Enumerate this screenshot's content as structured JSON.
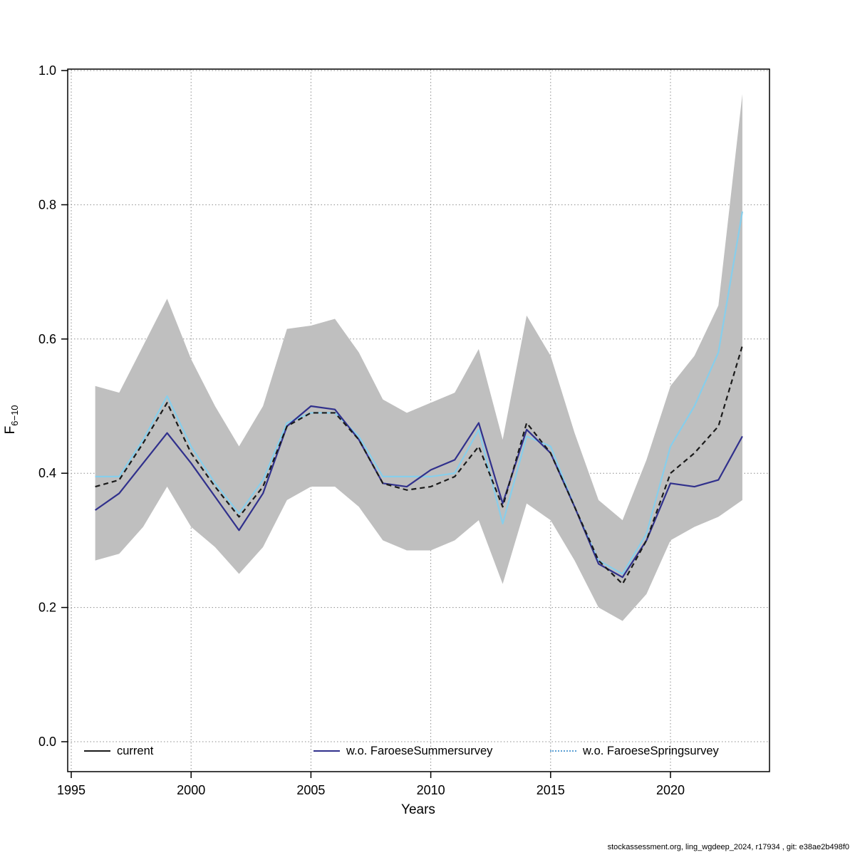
{
  "page": {
    "footer": "stockassessment.org, ling_wgdeep_2024, r17934 , git: e38ae2b498f0"
  },
  "chart_data": {
    "type": "line",
    "title": "",
    "xlabel": "Years",
    "ylabel_main": "F",
    "ylabel_sub": "6−10",
    "xlim": [
      1994.8,
      2024.2
    ],
    "ylim": [
      0,
      1.0
    ],
    "xticks": [
      1995,
      2000,
      2005,
      2010,
      2015,
      2020
    ],
    "yticks": [
      0.0,
      0.2,
      0.4,
      0.6,
      0.8,
      1.0
    ],
    "grid": true,
    "x": [
      1996,
      1997,
      1998,
      1999,
      2000,
      2001,
      2002,
      2003,
      2004,
      2005,
      2006,
      2007,
      2008,
      2009,
      2010,
      2011,
      2012,
      2013,
      2014,
      2015,
      2016,
      2017,
      2018,
      2019,
      2020,
      2021,
      2022,
      2023
    ],
    "band": {
      "name": "confidence-band",
      "color": "#bfbfbf",
      "lower": [
        0.27,
        0.28,
        0.32,
        0.38,
        0.32,
        0.29,
        0.25,
        0.29,
        0.36,
        0.38,
        0.38,
        0.35,
        0.3,
        0.285,
        0.285,
        0.3,
        0.33,
        0.235,
        0.355,
        0.33,
        0.27,
        0.2,
        0.18,
        0.22,
        0.3,
        0.32,
        0.335,
        0.36
      ],
      "upper": [
        0.53,
        0.52,
        0.59,
        0.66,
        0.57,
        0.5,
        0.44,
        0.5,
        0.615,
        0.62,
        0.63,
        0.58,
        0.51,
        0.49,
        0.505,
        0.52,
        0.585,
        0.45,
        0.635,
        0.575,
        0.46,
        0.36,
        0.33,
        0.42,
        0.53,
        0.575,
        0.65,
        0.965
      ]
    },
    "series": [
      {
        "name": "current",
        "color": "#1a1a1a",
        "style": "dashed",
        "values": [
          0.38,
          0.39,
          0.445,
          0.505,
          0.43,
          0.38,
          0.335,
          0.38,
          0.47,
          0.49,
          0.49,
          0.45,
          0.385,
          0.375,
          0.38,
          0.395,
          0.44,
          0.35,
          0.475,
          0.43,
          0.35,
          0.27,
          0.235,
          0.3,
          0.4,
          0.43,
          0.47,
          0.59
        ]
      },
      {
        "name": "w.o. FaroeseSummersurvey",
        "color": "#30308c",
        "style": "solid",
        "values": [
          0.345,
          0.37,
          0.415,
          0.46,
          0.415,
          0.365,
          0.315,
          0.37,
          0.47,
          0.5,
          0.495,
          0.45,
          0.385,
          0.38,
          0.405,
          0.42,
          0.475,
          0.355,
          0.465,
          0.43,
          0.35,
          0.265,
          0.245,
          0.3,
          0.385,
          0.38,
          0.39,
          0.455
        ]
      },
      {
        "name": "w.o. FaroeseSpringsurvey",
        "color": "#87ceeb",
        "style": "solid",
        "values": [
          0.395,
          0.395,
          0.45,
          0.515,
          0.44,
          0.385,
          0.34,
          0.39,
          0.475,
          0.49,
          0.49,
          0.455,
          0.395,
          0.395,
          0.395,
          0.4,
          0.465,
          0.325,
          0.455,
          0.44,
          0.35,
          0.27,
          0.25,
          0.31,
          0.44,
          0.5,
          0.58,
          0.79
        ]
      }
    ],
    "legend": {
      "position": "bottom-inside",
      "items": [
        {
          "label": "current",
          "color": "#1a1a1a",
          "line": "solid"
        },
        {
          "label": "w.o. FaroeseSummersurvey",
          "color": "#30308c",
          "line": "solid"
        },
        {
          "label": "w.o. FaroeseSpringsurvey",
          "color": "#5b9fd4",
          "line": "dotted"
        }
      ]
    }
  }
}
